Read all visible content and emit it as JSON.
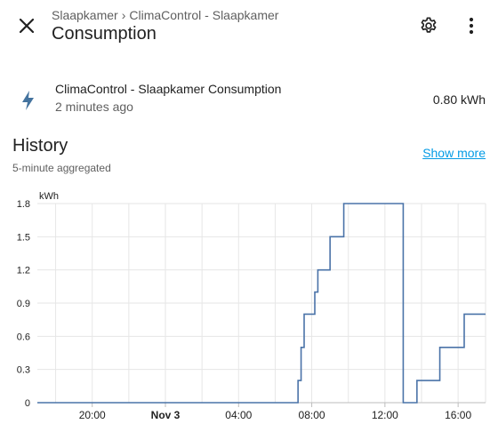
{
  "header": {
    "breadcrumb": {
      "area": "Slaapkamer",
      "device": "ClimaControl - Slaapkamer"
    },
    "title": "Consumption"
  },
  "entity": {
    "name": "ClimaControl - Slaapkamer Consumption",
    "last_changed": "2 minutes ago",
    "state": "0.80 kWh"
  },
  "history": {
    "title": "History",
    "subtitle": "5-minute aggregated",
    "show_more": "Show more"
  },
  "chart_data": {
    "type": "line",
    "step": true,
    "unit_label": "kWh",
    "ylim": [
      0,
      1.8
    ],
    "xlim": [
      "2023-11-02 17:00",
      "2023-11-03 17:30"
    ],
    "x_ticks": [
      "20:00",
      "Nov 3",
      "04:00",
      "08:00",
      "12:00",
      "16:00"
    ],
    "y_ticks": [
      "0",
      "0.3",
      "0.6",
      "0.9",
      "1.2",
      "1.5",
      "1.8"
    ],
    "grid": true,
    "color": "#4a73a8",
    "series": [
      {
        "points": [
          [
            "2023-11-02 17:00",
            0
          ],
          [
            "2023-11-03 07:15",
            0.2
          ],
          [
            "2023-11-03 07:25",
            0.5
          ],
          [
            "2023-11-03 07:35",
            0.8
          ],
          [
            "2023-11-03 08:10",
            1.0
          ],
          [
            "2023-11-03 08:20",
            1.2
          ],
          [
            "2023-11-03 09:00",
            1.5
          ],
          [
            "2023-11-03 09:45",
            1.8
          ],
          [
            "2023-11-03 13:00",
            0
          ],
          [
            "2023-11-03 13:45",
            0.2
          ],
          [
            "2023-11-03 15:00",
            0.5
          ],
          [
            "2023-11-03 16:20",
            0.8
          ],
          [
            "2023-11-03 17:30",
            0.8
          ]
        ]
      }
    ]
  }
}
